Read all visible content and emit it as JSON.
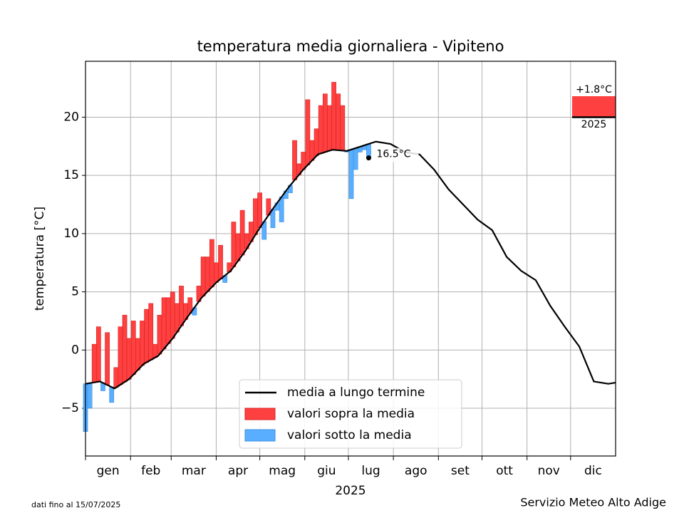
{
  "chart_data": {
    "type": "line",
    "title": "temperatura media giornaliera - Vipiteno",
    "xlabel": "2025",
    "ylabel": "temperatura [°C]",
    "xlim": [
      0,
      365
    ],
    "xticks": [
      0,
      31,
      59,
      90,
      120,
      151,
      181,
      212,
      243,
      273,
      304,
      334
    ],
    "categories": [
      "gen",
      "feb",
      "mar",
      "apr",
      "mag",
      "giu",
      "lug",
      "ago",
      "set",
      "ott",
      "nov",
      "dic"
    ],
    "ylim": [
      -9.1,
      24.8
    ],
    "yticks": [
      {
        "value": -5,
        "label": "−5"
      },
      0,
      5,
      10,
      15,
      20
    ],
    "grid": true,
    "series": [
      {
        "name": "media a lungo termine",
        "color": "#000000",
        "x": [
          0,
          10,
          15,
          20,
          30,
          40,
          50,
          60,
          70,
          80,
          90,
          100,
          110,
          120,
          130,
          140,
          150,
          160,
          170,
          180,
          190,
          200,
          210,
          220,
          230,
          240,
          250,
          260,
          270,
          280,
          290,
          300,
          310,
          320,
          330,
          340,
          350,
          360,
          365
        ],
        "values": [
          -2.9,
          -2.7,
          -3.0,
          -3.3,
          -2.5,
          -1.2,
          -0.5,
          1.0,
          2.8,
          4.5,
          5.8,
          6.8,
          8.5,
          10.5,
          12.3,
          14.0,
          15.5,
          16.8,
          17.2,
          17.1,
          17.5,
          17.9,
          17.7,
          17.0,
          16.8,
          15.5,
          13.8,
          12.5,
          11.2,
          10.3,
          8.0,
          6.8,
          6.0,
          3.8,
          2.0,
          0.3,
          -2.7,
          -2.9,
          -2.8
        ]
      },
      {
        "name": "valori sopra la media",
        "color": "#ff4040"
      },
      {
        "name": "valori sotto la media",
        "color": "#5aaeff"
      }
    ],
    "observed": {
      "x": [
        0,
        3,
        6,
        9,
        12,
        15,
        18,
        21,
        24,
        27,
        30,
        33,
        36,
        39,
        42,
        45,
        48,
        51,
        54,
        57,
        60,
        63,
        66,
        69,
        72,
        75,
        78,
        81,
        84,
        87,
        90,
        93,
        96,
        99,
        102,
        105,
        108,
        111,
        114,
        117,
        120,
        123,
        126,
        129,
        132,
        135,
        138,
        141,
        144,
        147,
        150,
        153,
        156,
        159,
        162,
        165,
        168,
        171,
        174,
        177,
        180,
        183,
        186,
        189,
        192,
        195
      ],
      "values": [
        -7,
        -5,
        0.5,
        2,
        -3.5,
        1.5,
        -4.5,
        -1.5,
        2,
        3,
        1,
        2.5,
        1,
        2.5,
        3.5,
        4,
        0.5,
        3,
        4.5,
        4.5,
        5,
        4,
        5.5,
        4,
        4.5,
        3,
        5.5,
        8,
        8,
        9.5,
        7.5,
        9,
        5.8,
        7.5,
        11,
        10,
        12,
        10,
        11,
        13,
        13.5,
        9.5,
        13,
        10.5,
        12,
        11,
        13,
        13.5,
        18,
        16,
        17,
        21.5,
        18,
        19,
        21,
        22,
        21,
        23,
        22,
        21,
        17,
        13,
        15.5,
        17,
        17.2,
        16.5
      ],
      "last_label": "16.5°C"
    },
    "anomaly": {
      "value": 1.8,
      "label": "+1.8°C",
      "year": "2025"
    },
    "note": "dati fino al 15/07/2025",
    "source": "Servizio Meteo Alto Adige"
  }
}
